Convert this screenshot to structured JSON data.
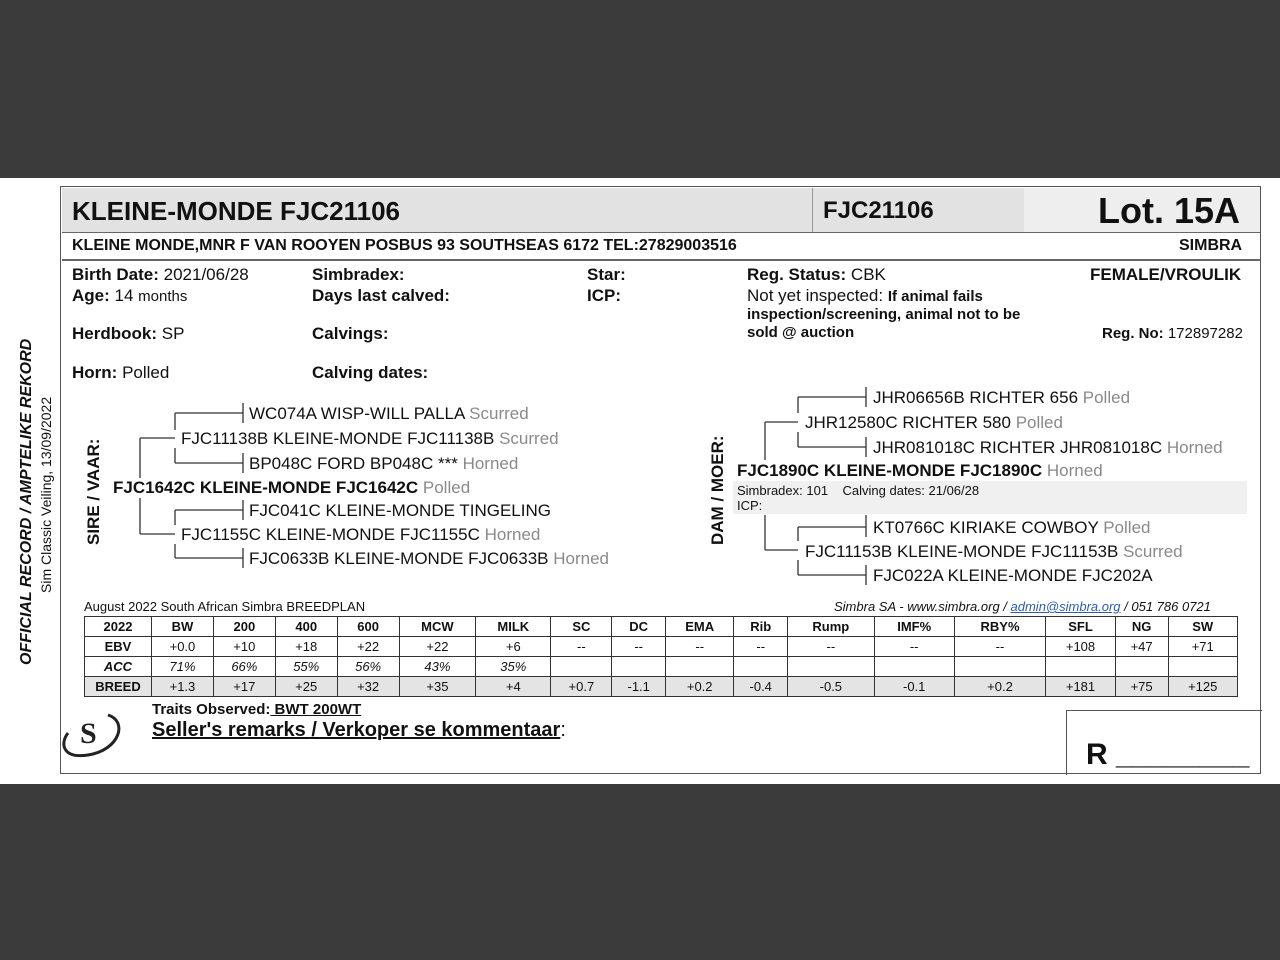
{
  "header": {
    "title": "KLEINE-MONDE FJC21106",
    "id": "FJC21106",
    "lot": "Lot. 15A",
    "owner": "KLEINE MONDE,MNR F VAN ROOYEN POSBUS 93 SOUTHSEAS 6172 TEL:27829003516",
    "breed": "SIMBRA"
  },
  "side": {
    "official": "OFFICIAL RECORD / AMPTELIKE REKORD",
    "sale": "Sim Classic Veiling, 13/09/2022"
  },
  "info": {
    "birth_label": "Birth Date:",
    "birth": "2021/06/28",
    "age_label": "Age:",
    "age": "14",
    "age_unit": "months",
    "herdbook_label": "Herdbook:",
    "herdbook": "SP",
    "horn_label": "Horn:",
    "horn": "Polled",
    "simbradex_label": "Simbradex:",
    "days_label": "Days last calved:",
    "calvings_label": "Calvings:",
    "calving_dates_label": "Calving dates:",
    "star_label": "Star:",
    "icp_label": "ICP:",
    "reg_status_label": "Reg. Status:",
    "reg_status": "CBK",
    "inspect": "Not yet inspected:",
    "inspect_note1": "If animal fails",
    "inspect_note2": "inspection/screening, animal not to be",
    "inspect_note3": "sold @ auction",
    "sex": "FEMALE/VROULIK",
    "reg_no_label": "Reg. No:",
    "reg_no": "172897282"
  },
  "sire": {
    "label": "SIRE / VAAR:",
    "name": "FJC1642C KLEINE-MONDE FJC1642C",
    "horn": "Polled",
    "ss": {
      "name": "FJC11138B KLEINE-MONDE FJC11138B",
      "horn": "Scurred"
    },
    "sss": {
      "name": "WC074A WISP-WILL PALLA",
      "horn": "Scurred"
    },
    "ssd": {
      "name": "BP048C FORD BP048C ***",
      "horn": "Horned"
    },
    "sd": {
      "name": "FJC1155C KLEINE-MONDE FJC1155C",
      "horn": "Horned"
    },
    "sds": {
      "name": "FJC041C KLEINE-MONDE TINGELING",
      "horn": ""
    },
    "sdd": {
      "name": "FJC0633B KLEINE-MONDE FJC0633B",
      "horn": "Horned"
    }
  },
  "dam": {
    "label": "DAM / MOER:",
    "name": "FJC1890C KLEINE-MONDE FJC1890C",
    "horn": "Horned",
    "simbradex": "Simbradex: 101",
    "calving": "Calving dates: 21/06/28",
    "icp": "ICP:",
    "ds": {
      "name": "JHR12580C RICHTER 580",
      "horn": "Polled"
    },
    "dss": {
      "name": "JHR06656B RICHTER 656",
      "horn": "Polled"
    },
    "dsd": {
      "name": "JHR081018C RICHTER JHR081018C",
      "horn": "Horned"
    },
    "dd": {
      "name": "FJC11153B KLEINE-MONDE FJC11153B",
      "horn": "Scurred"
    },
    "dds": {
      "name": "KT0766C KIRIAKE COWBOY",
      "horn": "Polled"
    },
    "ddd": {
      "name": "FJC022A KLEINE-MONDE FJC202A",
      "horn": ""
    }
  },
  "breedplan": {
    "title": "August 2022 South African Simbra BREEDPLAN",
    "contact_pre": "Simbra SA - www.simbra.org / ",
    "email": "admin@simbra.org",
    "contact_post": " / 051 786 0721",
    "headers": [
      "2022",
      "BW",
      "200",
      "400",
      "600",
      "MCW",
      "MILK",
      "SC",
      "DC",
      "EMA",
      "Rib",
      "Rump",
      "IMF%",
      "RBY%",
      "SFL",
      "NG",
      "SW"
    ],
    "rows": [
      [
        "EBV",
        "+0.0",
        "+10",
        "+18",
        "+22",
        "+22",
        "+6",
        "--",
        "--",
        "--",
        "--",
        "--",
        "--",
        "--",
        "+108",
        "+47",
        "+71"
      ],
      [
        "ACC",
        "71%",
        "66%",
        "55%",
        "56%",
        "43%",
        "35%",
        "",
        "",
        "",
        "",
        "",
        "",
        "",
        "",
        "",
        ""
      ],
      [
        "BREED",
        "+1.3",
        "+17",
        "+25",
        "+32",
        "+35",
        "+4",
        "+0.7",
        "-1.1",
        "+0.2",
        "-0.4",
        "-0.5",
        "-0.1",
        "+0.2",
        "+181",
        "+75",
        "+125"
      ]
    ]
  },
  "footer": {
    "traits_label": "Traits Observed:",
    "traits": " BWT  200WT",
    "remarks": "Seller's remarks / Verkoper se kommentaar",
    "colon": ":",
    "r_label": "R ________",
    "logo": "S"
  }
}
